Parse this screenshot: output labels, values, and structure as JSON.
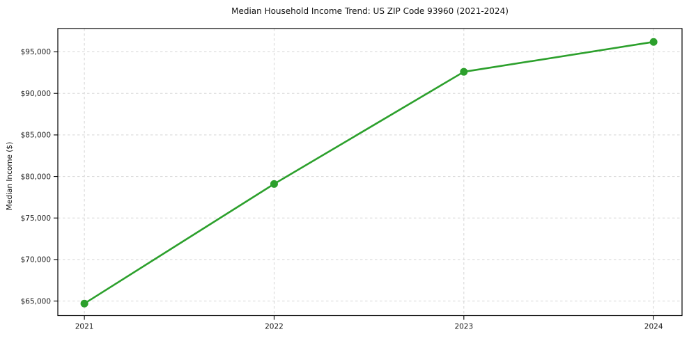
{
  "chart_data": {
    "type": "line",
    "title": "Median Household Income Trend: US ZIP Code 93960 (2021-2024)",
    "xlabel": "",
    "ylabel": "Median Income ($)",
    "x": [
      2021,
      2022,
      2023,
      2024
    ],
    "x_tick_labels": [
      "2021",
      "2022",
      "2023",
      "2024"
    ],
    "y_ticks": [
      65000,
      70000,
      75000,
      80000,
      85000,
      90000,
      95000
    ],
    "y_tick_labels": [
      "$65,000",
      "$70,000",
      "$75,000",
      "$80,000",
      "$85,000",
      "$90,000",
      "$95,000"
    ],
    "series": [
      {
        "name": "Median Household Income",
        "values": [
          64700,
          79100,
          92600,
          96200
        ],
        "color": "#2ca02c",
        "marker": "circle"
      }
    ],
    "xlim": [
      2020.86,
      2024.15
    ],
    "ylim": [
      63250,
      97810
    ],
    "grid": true,
    "grid_style": "dashed",
    "legend": false,
    "colors": {
      "line": "#2ca02c",
      "grid": "#d5d5d5",
      "spine": "#000000",
      "tick_label": "#1a1a1a",
      "background": "#ffffff"
    }
  }
}
